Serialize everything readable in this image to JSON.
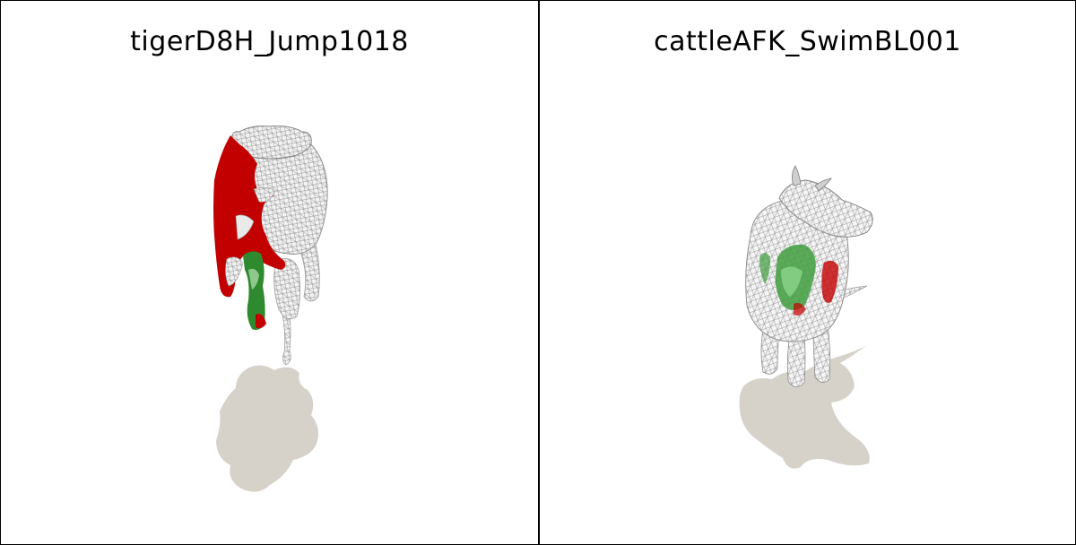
{
  "panels": [
    {
      "title": "tigerD8H_Jump1018",
      "subject": "tiger",
      "pose": "jump",
      "render_style": "wireframe with partial red/green surface segmentation",
      "colors": {
        "wire": "#b8b8b8",
        "red": "#c40000",
        "green": "#2e8b2e",
        "shadow": "#d6d2ca"
      }
    },
    {
      "title": "cattleAFK_SwimBL001",
      "subject": "cattle",
      "pose": "swim",
      "render_style": "wireframe with partial red/green surface segmentation",
      "colors": {
        "wire": "#b8b8b8",
        "red": "#c40000",
        "green": "#2e8b2e",
        "shadow": "#d6d2ca"
      }
    }
  ]
}
